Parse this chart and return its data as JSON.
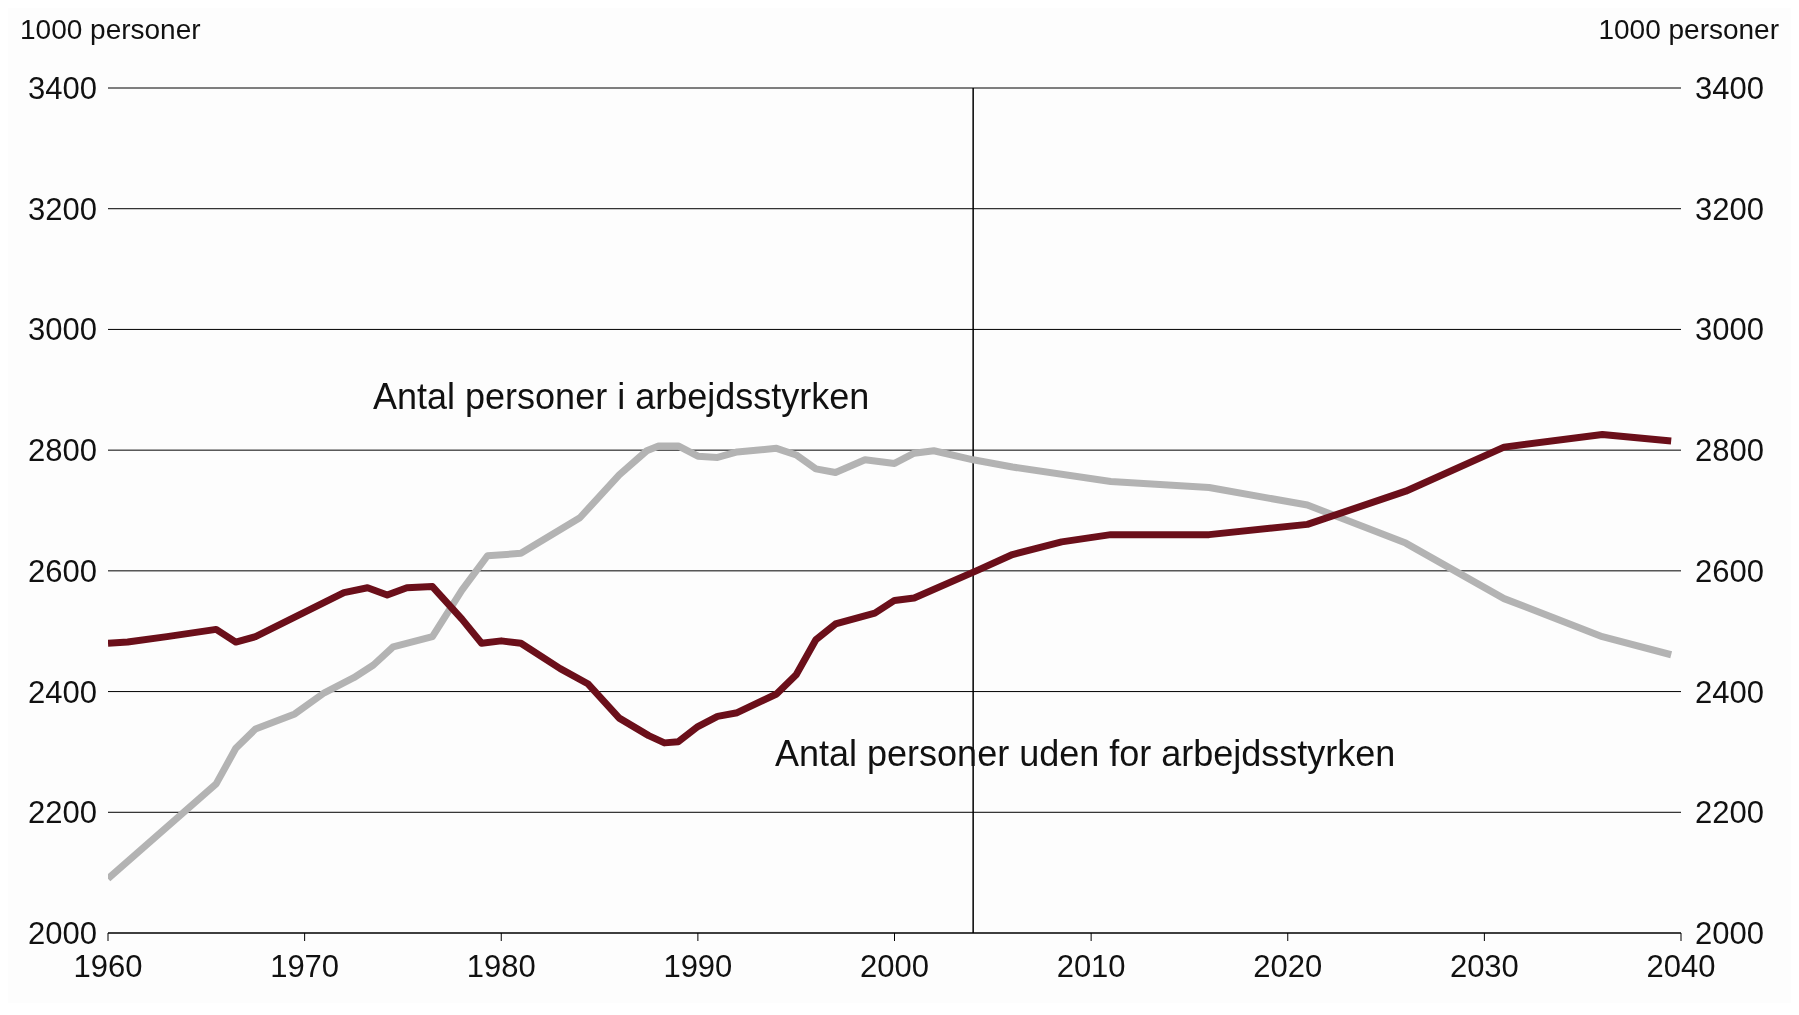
{
  "chart_data": {
    "type": "line",
    "ylabel": "1000 personer",
    "y2label": "1000 personer",
    "xlim": [
      1960,
      2040
    ],
    "xticks": [
      1960,
      1970,
      1980,
      1990,
      2000,
      2010,
      2020,
      2030,
      2040
    ],
    "ylim": [
      2000,
      3400
    ],
    "yticks": [
      2000,
      2200,
      2400,
      2600,
      2800,
      3000,
      3200,
      3400
    ],
    "y2lim": [
      2000,
      3400
    ],
    "y2ticks": [
      2000,
      2200,
      2400,
      2600,
      2800,
      3000,
      3200,
      3400
    ],
    "grid": "y",
    "marker": "none",
    "line_style": "solid",
    "ref_lines": [
      {
        "axis": "x",
        "value": 2004,
        "color": "#000000"
      }
    ],
    "series": [
      {
        "name": "Antal personer i arbejdsstyrken",
        "color": "#b3b3b3",
        "x": [
          1960,
          1965.5,
          1966.5,
          1967.5,
          1969.5,
          1971,
          1972.5,
          1973.5,
          1974.5,
          1976.5,
          1978,
          1979.3,
          1981,
          1984,
          1986,
          1987.4,
          1988,
          1989,
          1990,
          1991,
          1992,
          1994,
          1995,
          1996,
          1997,
          1998.5,
          2000,
          2001,
          2002,
          2004,
          2006,
          2011,
          2016,
          2021,
          2026,
          2031,
          2036,
          2039.5
        ],
        "values": [
          2090,
          2247,
          2306,
          2338,
          2363,
          2398,
          2423,
          2444,
          2474,
          2491,
          2568,
          2625,
          2629,
          2688,
          2759,
          2799,
          2807,
          2807,
          2790,
          2788,
          2797,
          2803,
          2792,
          2769,
          2763,
          2784,
          2778,
          2795,
          2799,
          2784,
          2772,
          2748,
          2738,
          2709,
          2646,
          2554,
          2491,
          2461
        ]
      },
      {
        "name": "Antal personer uden for arbejdsstyrken",
        "color": "#6b0f1a",
        "x": [
          1960,
          1961,
          1963,
          1965.5,
          1966.5,
          1967.5,
          1972,
          1973.2,
          1974.2,
          1975.2,
          1976.5,
          1978,
          1979,
          1980,
          1981,
          1983,
          1984.4,
          1986,
          1987.5,
          1988.3,
          1989,
          1990,
          1991,
          1992,
          1994,
          1995,
          1996,
          1997,
          1999,
          2000,
          2001,
          2004.3,
          2006,
          2008.5,
          2011,
          2016,
          2021,
          2026,
          2031,
          2036,
          2039.5
        ],
        "values": [
          2480,
          2482,
          2491,
          2503,
          2482,
          2491,
          2564,
          2572,
          2560,
          2572,
          2574,
          2520,
          2480,
          2484,
          2480,
          2438,
          2413,
          2356,
          2327,
          2315,
          2317,
          2342,
          2359,
          2365,
          2396,
          2428,
          2486,
          2512,
          2530,
          2551,
          2555,
          2602,
          2627,
          2648,
          2660,
          2660,
          2677,
          2732,
          2805,
          2826,
          2815
        ]
      }
    ]
  }
}
